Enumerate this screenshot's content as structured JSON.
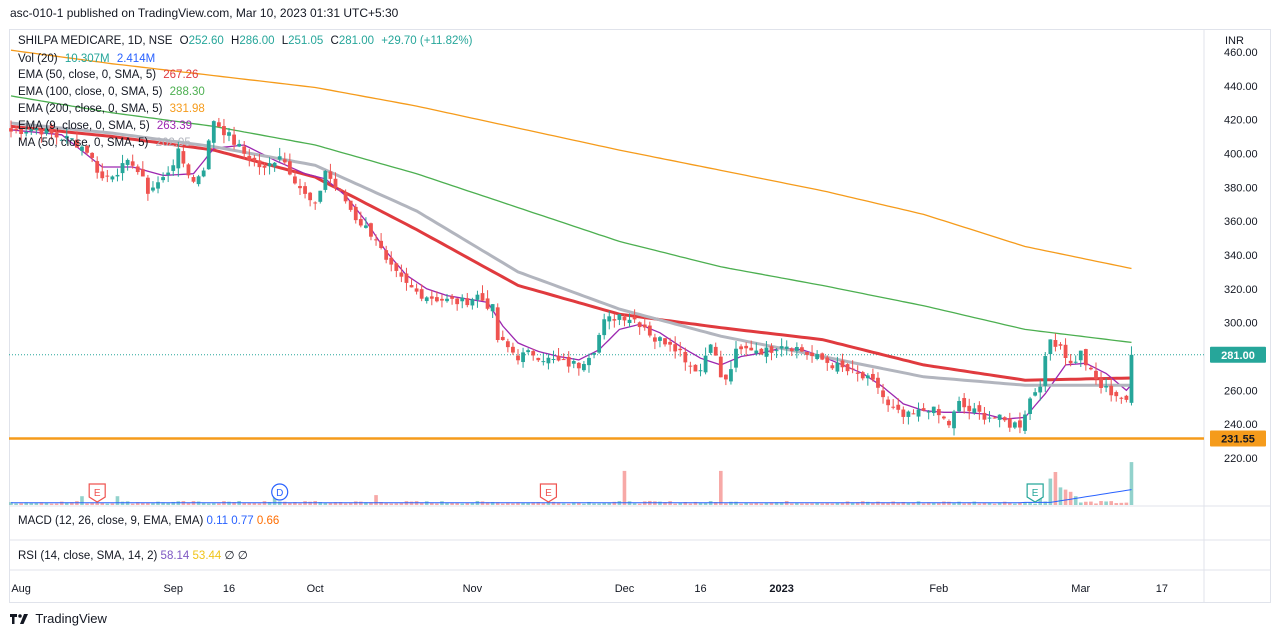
{
  "header": {
    "publish_line": "asc-010-1 published on TradingView.com, Mar 10, 2023 01:31 UTC+5:30"
  },
  "legend": {
    "symbol_line": {
      "title": "SHILPA MEDICARE, 1D, NSE",
      "o_label": "O",
      "o": "252.60",
      "h_label": "H",
      "h": "286.00",
      "l_label": "L",
      "l": "251.05",
      "c_label": "C",
      "c": "281.00",
      "change": "+29.70 (+11.82%)"
    },
    "vol": {
      "label": "Vol (20)",
      "v1": "10.307M",
      "v2": "2.414M"
    },
    "ema50": {
      "label": "EMA (50, close, 0, SMA, 5)",
      "value": "267.26",
      "color": "#e03a3e"
    },
    "ema100": {
      "label": "EMA (100, close, 0, SMA, 5)",
      "value": "288.30",
      "color": "#4caf50"
    },
    "ema200": {
      "label": "EMA (200, close, 0, SMA, 5)",
      "value": "331.98",
      "color": "#f59b1b"
    },
    "ema9": {
      "label": "EMA (9, close, 0, SMA, 5)",
      "value": "263.39",
      "color": "#9c27b0"
    },
    "ma50": {
      "label": "MA (50, close, 0, SMA, 5)",
      "value": "262.95",
      "color": "#b2b5be"
    }
  },
  "macd": {
    "label": "MACD (12, 26, close, 9, EMA, EMA)",
    "v1": "0.11",
    "v2": "0.77",
    "v3": "0.66"
  },
  "rsi": {
    "label": "RSI (14, close, SMA, 14, 2)",
    "v1": "58.14",
    "v2": "53.44",
    "v3": "∅",
    "v4": "∅"
  },
  "colors": {
    "up": "#26a69a",
    "down": "#ef5350",
    "support": "#f59b1b",
    "text": "#131722"
  },
  "markers": [
    {
      "label": "E",
      "kind": "earnings-marker",
      "color": "#ef5350"
    },
    {
      "label": "D",
      "kind": "dividend-marker",
      "color": "#2962ff"
    },
    {
      "label": "E",
      "kind": "earnings-marker",
      "color": "#ef5350"
    },
    {
      "label": "E",
      "kind": "earnings-marker",
      "color": "#26a69a"
    }
  ],
  "footer": {
    "brand": "TradingView"
  },
  "chart_data": {
    "type": "candlestick",
    "symbol": "SHILPA MEDICARE",
    "timeframe": "1D",
    "exchange": "NSE",
    "currency": "INR",
    "ylim": [
      210,
      470
    ],
    "y_ticks": [
      220,
      240,
      260,
      280,
      300,
      320,
      340,
      360,
      380,
      400,
      420,
      440,
      460
    ],
    "x_ticks": [
      {
        "label": "Aug",
        "day": 2,
        "bold": false
      },
      {
        "label": "Sep",
        "day": 32,
        "bold": false
      },
      {
        "label": "16",
        "day": 43,
        "bold": false
      },
      {
        "label": "Oct",
        "day": 60,
        "bold": false
      },
      {
        "label": "Nov",
        "day": 91,
        "bold": false
      },
      {
        "label": "Dec",
        "day": 121,
        "bold": false
      },
      {
        "label": "16",
        "day": 136,
        "bold": false
      },
      {
        "label": "2023",
        "day": 152,
        "bold": true
      },
      {
        "label": "Feb",
        "day": 183,
        "bold": false
      },
      {
        "label": "Mar",
        "day": 211,
        "bold": false
      },
      {
        "label": "17",
        "day": 227,
        "bold": false
      }
    ],
    "last_price": 281.0,
    "support_level": 231.55,
    "price_labels": [
      "281.00",
      "231.55"
    ],
    "close_keypoints": [
      [
        0,
        413
      ],
      [
        5,
        415
      ],
      [
        9,
        410
      ],
      [
        12,
        408
      ],
      [
        15,
        402
      ],
      [
        18,
        385
      ],
      [
        21,
        390
      ],
      [
        24,
        395
      ],
      [
        27,
        378
      ],
      [
        30,
        385
      ],
      [
        33,
        400
      ],
      [
        36,
        383
      ],
      [
        38,
        392
      ],
      [
        40,
        420
      ],
      [
        43,
        410
      ],
      [
        46,
        400
      ],
      [
        48,
        395
      ],
      [
        50,
        390
      ],
      [
        53,
        400
      ],
      [
        56,
        385
      ],
      [
        58,
        375
      ],
      [
        60,
        368
      ],
      [
        62,
        390
      ],
      [
        64,
        380
      ],
      [
        66,
        372
      ],
      [
        68,
        362
      ],
      [
        70,
        356
      ],
      [
        72,
        350
      ],
      [
        74,
        335
      ],
      [
        76,
        328
      ],
      [
        78,
        322
      ],
      [
        80,
        318
      ],
      [
        83,
        315
      ],
      [
        86,
        313
      ],
      [
        89,
        312
      ],
      [
        92,
        316
      ],
      [
        95,
        308
      ],
      [
        96,
        290
      ],
      [
        98,
        285
      ],
      [
        100,
        280
      ],
      [
        103,
        282
      ],
      [
        106,
        278
      ],
      [
        109,
        276
      ],
      [
        112,
        275
      ],
      [
        115,
        285
      ],
      [
        117,
        300
      ],
      [
        120,
        305
      ],
      [
        123,
        302
      ],
      [
        125,
        298
      ],
      [
        127,
        290
      ],
      [
        130,
        289
      ],
      [
        132,
        283
      ],
      [
        134,
        275
      ],
      [
        136,
        272
      ],
      [
        138,
        290
      ],
      [
        140,
        268
      ],
      [
        141,
        265
      ],
      [
        143,
        282
      ],
      [
        146,
        285
      ],
      [
        149,
        283
      ],
      [
        152,
        288
      ],
      [
        155,
        285
      ],
      [
        158,
        280
      ],
      [
        160,
        278
      ],
      [
        163,
        274
      ],
      [
        166,
        270
      ],
      [
        169,
        266
      ],
      [
        171,
        262
      ],
      [
        173,
        250
      ],
      [
        176,
        244
      ],
      [
        178,
        245
      ],
      [
        181,
        250
      ],
      [
        183,
        245
      ],
      [
        185,
        240
      ],
      [
        187,
        252
      ],
      [
        189,
        248
      ],
      [
        191,
        246
      ],
      [
        194,
        244
      ],
      [
        197,
        240
      ],
      [
        199,
        240
      ],
      [
        201,
        255
      ],
      [
        203,
        265
      ],
      [
        205,
        290
      ],
      [
        207,
        287
      ],
      [
        209,
        275
      ],
      [
        211,
        282
      ],
      [
        213,
        270
      ],
      [
        215,
        262
      ],
      [
        217,
        259
      ],
      [
        219,
        256
      ],
      [
        220,
        252
      ],
      [
        221,
        281
      ]
    ],
    "series": [
      {
        "name": "EMA 50",
        "color": "#e03a3e",
        "keypoints": [
          [
            0,
            416
          ],
          [
            20,
            410
          ],
          [
            40,
            402
          ],
          [
            60,
            386
          ],
          [
            80,
            355
          ],
          [
            100,
            322
          ],
          [
            120,
            305
          ],
          [
            140,
            297
          ],
          [
            160,
            290
          ],
          [
            180,
            275
          ],
          [
            200,
            266
          ],
          [
            221,
            267.26
          ]
        ]
      },
      {
        "name": "EMA 100",
        "color": "#4caf50",
        "keypoints": [
          [
            0,
            434
          ],
          [
            20,
            424
          ],
          [
            40,
            416
          ],
          [
            60,
            405
          ],
          [
            80,
            388
          ],
          [
            100,
            368
          ],
          [
            120,
            348
          ],
          [
            140,
            333
          ],
          [
            160,
            322
          ],
          [
            180,
            310
          ],
          [
            200,
            296
          ],
          [
            221,
            288.3
          ]
        ]
      },
      {
        "name": "EMA 200",
        "color": "#f59b1b",
        "keypoints": [
          [
            0,
            461
          ],
          [
            20,
            453
          ],
          [
            40,
            446
          ],
          [
            60,
            439
          ],
          [
            80,
            428
          ],
          [
            100,
            415
          ],
          [
            120,
            402
          ],
          [
            140,
            390
          ],
          [
            160,
            378
          ],
          [
            180,
            364
          ],
          [
            200,
            345
          ],
          [
            221,
            331.98
          ]
        ]
      },
      {
        "name": "EMA 9",
        "color": "#9c27b0",
        "keypoints": [
          [
            0,
            414
          ],
          [
            10,
            411
          ],
          [
            18,
            392
          ],
          [
            24,
            392
          ],
          [
            30,
            387
          ],
          [
            36,
            388
          ],
          [
            40,
            403
          ],
          [
            46,
            405
          ],
          [
            52,
            396
          ],
          [
            58,
            388
          ],
          [
            62,
            385
          ],
          [
            66,
            375
          ],
          [
            70,
            360
          ],
          [
            74,
            342
          ],
          [
            78,
            328
          ],
          [
            82,
            320
          ],
          [
            86,
            316
          ],
          [
            90,
            314
          ],
          [
            94,
            312
          ],
          [
            97,
            298
          ],
          [
            100,
            288
          ],
          [
            104,
            283
          ],
          [
            108,
            280
          ],
          [
            112,
            278
          ],
          [
            116,
            284
          ],
          [
            120,
            296
          ],
          [
            124,
            299
          ],
          [
            128,
            294
          ],
          [
            132,
            286
          ],
          [
            136,
            279
          ],
          [
            140,
            275
          ],
          [
            144,
            280
          ],
          [
            148,
            282
          ],
          [
            152,
            285
          ],
          [
            156,
            284
          ],
          [
            160,
            280
          ],
          [
            164,
            275
          ],
          [
            168,
            270
          ],
          [
            172,
            262
          ],
          [
            176,
            252
          ],
          [
            180,
            248
          ],
          [
            184,
            247
          ],
          [
            188,
            247
          ],
          [
            192,
            246
          ],
          [
            196,
            243
          ],
          [
            200,
            244
          ],
          [
            204,
            258
          ],
          [
            208,
            275
          ],
          [
            212,
            276
          ],
          [
            216,
            270
          ],
          [
            220,
            260
          ],
          [
            221,
            263.39
          ]
        ]
      },
      {
        "name": "MA 50",
        "color": "#b2b5be",
        "keypoints": [
          [
            0,
            418
          ],
          [
            20,
            412
          ],
          [
            40,
            404
          ],
          [
            60,
            393
          ],
          [
            80,
            366
          ],
          [
            100,
            330
          ],
          [
            120,
            308
          ],
          [
            140,
            292
          ],
          [
            160,
            280
          ],
          [
            180,
            268
          ],
          [
            200,
            263
          ],
          [
            221,
            262.95
          ]
        ]
      }
    ],
    "volume_relative_spikes": [
      [
        14,
        0.8
      ],
      [
        21,
        0.8
      ],
      [
        42,
        0.35
      ],
      [
        52,
        0.9
      ],
      [
        58,
        0.35
      ],
      [
        72,
        0.9
      ],
      [
        94,
        0.25
      ],
      [
        121,
        3.1
      ],
      [
        140,
        3.1
      ],
      [
        203,
        1.4
      ],
      [
        205,
        2.4
      ],
      [
        206,
        3.0
      ],
      [
        207,
        1.6
      ],
      [
        208,
        1.4
      ],
      [
        209,
        1.2
      ],
      [
        210,
        0.8
      ],
      [
        221,
        3.9
      ]
    ]
  }
}
